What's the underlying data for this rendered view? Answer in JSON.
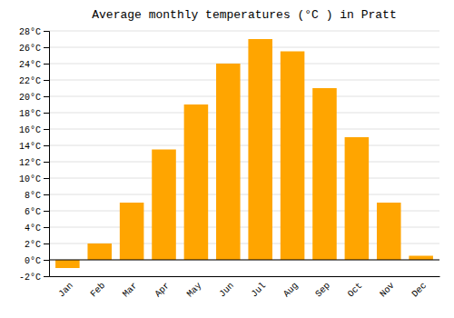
{
  "chart_data": {
    "type": "bar",
    "title": "Average monthly temperatures (°C ) in Pratt",
    "categories": [
      "Jan",
      "Feb",
      "Mar",
      "Apr",
      "May",
      "Jun",
      "Jul",
      "Aug",
      "Sep",
      "Oct",
      "Nov",
      "Dec"
    ],
    "values": [
      -1.0,
      2.0,
      7.0,
      13.5,
      19.0,
      24.0,
      27.0,
      25.5,
      21.0,
      15.0,
      7.0,
      0.5
    ],
    "color": "#FFA500",
    "ylim": [
      -2,
      28
    ],
    "yticks": [
      {
        "value": -2,
        "label": "-2°C"
      },
      {
        "value": 0,
        "label": "0°C"
      },
      {
        "value": 2,
        "label": "2°C"
      },
      {
        "value": 4,
        "label": "4°C"
      },
      {
        "value": 6,
        "label": "6°C"
      },
      {
        "value": 8,
        "label": "8°C"
      },
      {
        "value": 10,
        "label": "10°C"
      },
      {
        "value": 12,
        "label": "12°C"
      },
      {
        "value": 14,
        "label": "14°C"
      },
      {
        "value": 16,
        "label": "16°C"
      },
      {
        "value": 18,
        "label": "18°C"
      },
      {
        "value": 20,
        "label": "20°C"
      },
      {
        "value": 22,
        "label": "22°C"
      },
      {
        "value": 24,
        "label": "24°C"
      },
      {
        "value": 26,
        "label": "26°C"
      },
      {
        "value": 28,
        "label": "28°C"
      }
    ],
    "grid": true
  }
}
